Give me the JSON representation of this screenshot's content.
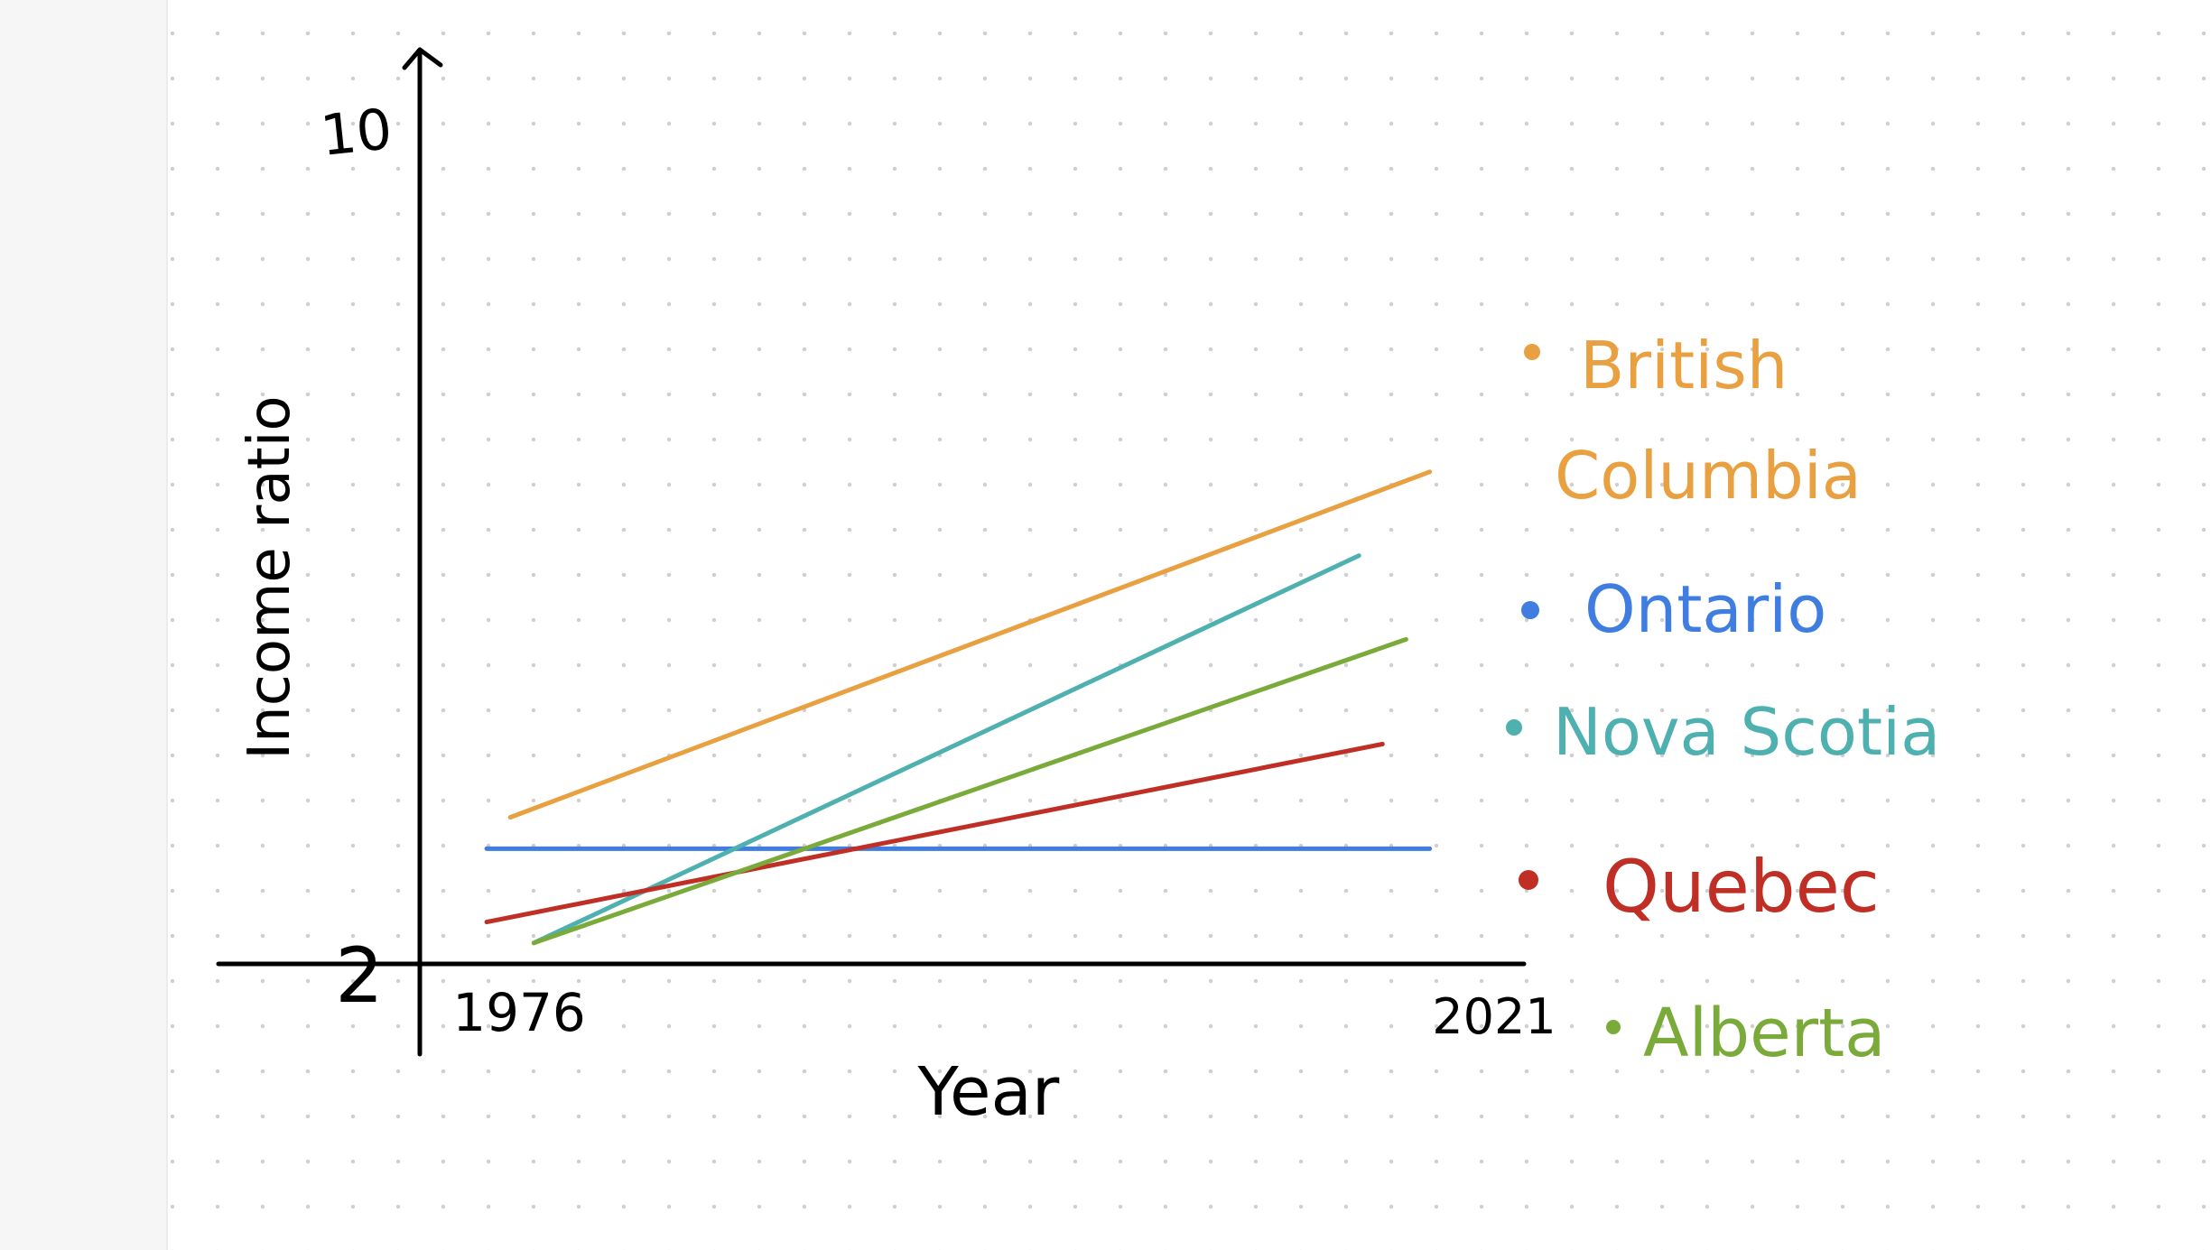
{
  "chart_data": {
    "type": "line",
    "title": "",
    "xlabel": "Year",
    "ylabel": "Income ratio",
    "xlim": [
      1976,
      2021
    ],
    "ylim": [
      2,
      10
    ],
    "x_tick_labels": [
      "1976",
      "2021"
    ],
    "y_tick_labels": [
      "2",
      "10"
    ],
    "legend_placement": "right",
    "grid": false,
    "series": [
      {
        "name": "British Columbia",
        "color": "#e8a040",
        "x": [
          1978,
          2017
        ],
        "y": [
          3.4,
          6.7
        ]
      },
      {
        "name": "Ontario",
        "color": "#3f7ee0",
        "x": [
          1977,
          2017
        ],
        "y": [
          3.1,
          3.1
        ]
      },
      {
        "name": "Nova Scotia",
        "color": "#4fb0b0",
        "x": [
          1979,
          2014
        ],
        "y": [
          2.2,
          5.9
        ]
      },
      {
        "name": "Quebec",
        "color": "#c02f25",
        "x": [
          1977,
          2015
        ],
        "y": [
          2.4,
          4.1
        ]
      },
      {
        "name": "Alberta",
        "color": "#7aab3a",
        "x": [
          1979,
          2016
        ],
        "y": [
          2.2,
          5.1
        ]
      }
    ]
  }
}
